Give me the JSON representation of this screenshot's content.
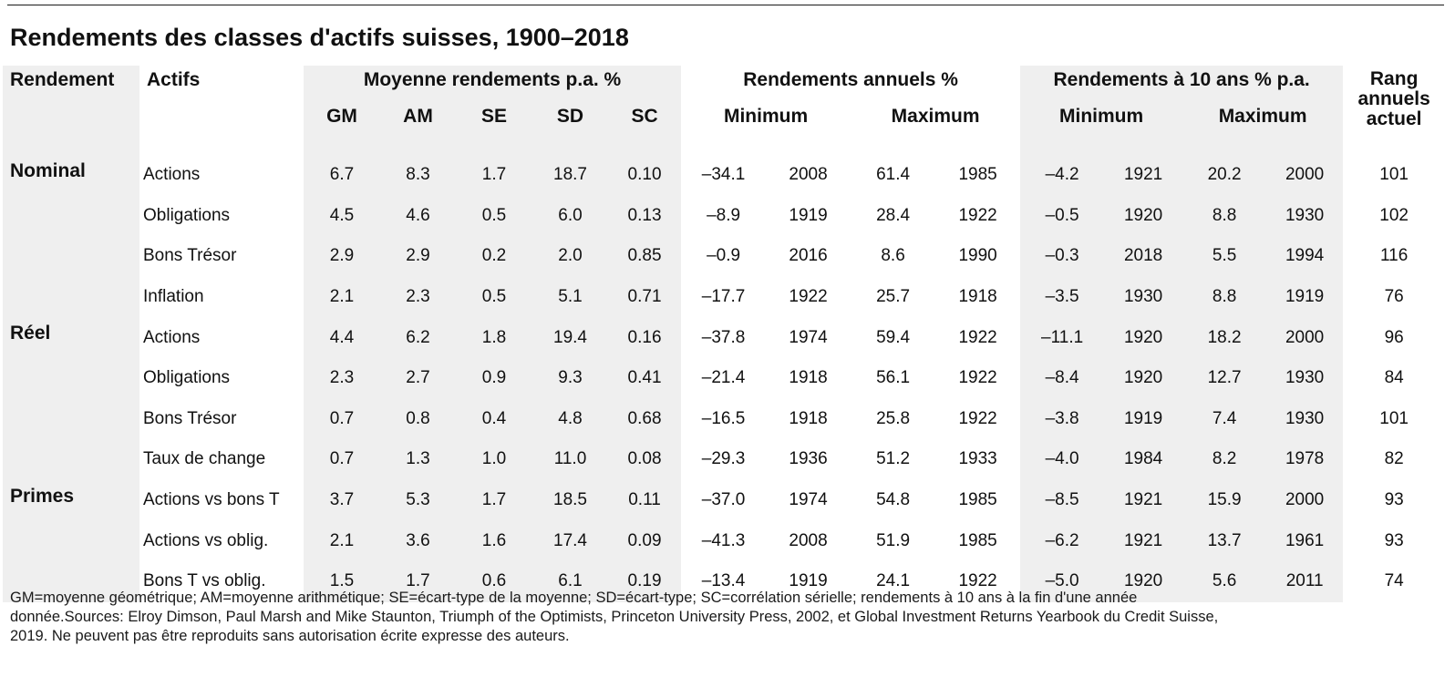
{
  "title": "Rendements des classes d'actifs suisses, 1900–2018",
  "header": {
    "rendement": "Rendement",
    "actifs": "Actifs",
    "moyenne": "Moyenne rendements p.a. %",
    "annuels": "Rendements annuels %",
    "dix_ans": "Rendements à 10 ans % p.a.",
    "rang_line1": "Rang",
    "rang_line2": "annuels",
    "rang_line3": "actuel",
    "gm": "GM",
    "am": "AM",
    "se": "SE",
    "sd": "SD",
    "sc": "SC",
    "annuels_min": "Minimum",
    "annuels_max": "Maximum",
    "dix_min": "Minimum",
    "dix_max": "Maximum"
  },
  "groups": [
    {
      "name": "Nominal",
      "rows": [
        {
          "asset": "Actions",
          "cells": [
            "6.7",
            "8.3",
            "1.7",
            "18.7",
            "0.10",
            "–34.1",
            "2008",
            "61.4",
            "1985",
            "–4.2",
            "1921",
            "20.2",
            "2000",
            "101"
          ]
        },
        {
          "asset": "Obligations",
          "cells": [
            "4.5",
            "4.6",
            "0.5",
            "6.0",
            "0.13",
            "–8.9",
            "1919",
            "28.4",
            "1922",
            "–0.5",
            "1920",
            "8.8",
            "1930",
            "102"
          ]
        },
        {
          "asset": "Bons Trésor",
          "cells": [
            "2.9",
            "2.9",
            "0.2",
            "2.0",
            "0.85",
            "–0.9",
            "2016",
            "8.6",
            "1990",
            "–0.3",
            "2018",
            "5.5",
            "1994",
            "116"
          ]
        },
        {
          "asset": "Inflation",
          "cells": [
            "2.1",
            "2.3",
            "0.5",
            "5.1",
            "0.71",
            "–17.7",
            "1922",
            "25.7",
            "1918",
            "–3.5",
            "1930",
            "8.8",
            "1919",
            "76"
          ]
        }
      ]
    },
    {
      "name": "Réel",
      "rows": [
        {
          "asset": "Actions",
          "cells": [
            "4.4",
            "6.2",
            "1.8",
            "19.4",
            "0.16",
            "–37.8",
            "1974",
            "59.4",
            "1922",
            "–11.1",
            "1920",
            "18.2",
            "2000",
            "96"
          ]
        },
        {
          "asset": "Obligations",
          "cells": [
            "2.3",
            "2.7",
            "0.9",
            "9.3",
            "0.41",
            "–21.4",
            "1918",
            "56.1",
            "1922",
            "–8.4",
            "1920",
            "12.7",
            "1930",
            "84"
          ]
        },
        {
          "asset": "Bons Trésor",
          "cells": [
            "0.7",
            "0.8",
            "0.4",
            "4.8",
            "0.68",
            "–16.5",
            "1918",
            "25.8",
            "1922",
            "–3.8",
            "1919",
            "7.4",
            "1930",
            "101"
          ]
        },
        {
          "asset": "Taux de change",
          "cells": [
            "0.7",
            "1.3",
            "1.0",
            "11.0",
            "0.08",
            "–29.3",
            "1936",
            "51.2",
            "1933",
            "–4.0",
            "1984",
            "8.2",
            "1978",
            "82"
          ]
        }
      ]
    },
    {
      "name": "Primes",
      "rows": [
        {
          "asset": "Actions vs bons T",
          "cells": [
            "3.7",
            "5.3",
            "1.7",
            "18.5",
            "0.11",
            "–37.0",
            "1974",
            "54.8",
            "1985",
            "–8.5",
            "1921",
            "15.9",
            "2000",
            "93"
          ]
        },
        {
          "asset": "Actions vs oblig.",
          "cells": [
            "2.1",
            "3.6",
            "1.6",
            "17.4",
            "0.09",
            "–41.3",
            "2008",
            "51.9",
            "1985",
            "–6.2",
            "1921",
            "13.7",
            "1961",
            "93"
          ]
        },
        {
          "asset": "Bons T vs oblig.",
          "cells": [
            "1.5",
            "1.7",
            "0.6",
            "6.1",
            "0.19",
            "–13.4",
            "1919",
            "24.1",
            "1922",
            "–5.0",
            "1920",
            "5.6",
            "2011",
            "74"
          ]
        }
      ]
    }
  ],
  "footnote": {
    "line1": "GM=moyenne géométrique; AM=moyenne arithmétique; SE=écart-type de la moyenne; SD=écart-type; SC=corrélation sérielle; rendements à 10 ans à la fin d'une année",
    "line2": "donnée.Sources: Elroy Dimson, Paul Marsh and Mike Staunton, Triumph of the Optimists, Princeton University Press, 2002, et Global Investment Returns Yearbook du Credit Suisse,",
    "line3": "2019. Ne peuvent pas être reproduits sans autorisation écrite expresse des auteurs."
  },
  "colors": {
    "shade": "#efefef",
    "text": "#111111"
  }
}
